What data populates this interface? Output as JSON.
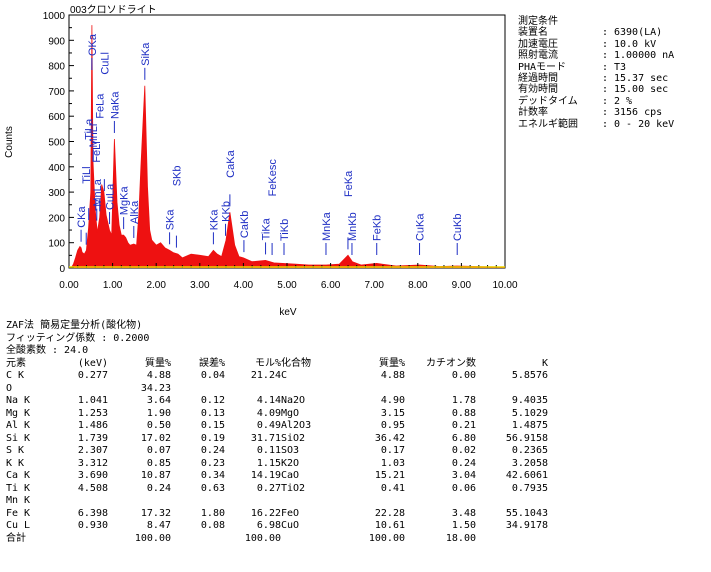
{
  "chart_data": {
    "type": "area",
    "title": "003クロソドライト",
    "xlabel": "keV",
    "ylabel": "Counts",
    "xlim": [
      0,
      10
    ],
    "ylim": [
      0,
      1000
    ],
    "x_ticks": [
      "0.00",
      "1.00",
      "2.00",
      "3.00",
      "4.00",
      "5.00",
      "6.00",
      "7.00",
      "8.00",
      "9.00",
      "10.00"
    ],
    "y_ticks": [
      "0",
      "100",
      "200",
      "300",
      "400",
      "500",
      "600",
      "700",
      "800",
      "900",
      "1000"
    ],
    "fill_color": "#ee1111",
    "line_color": "#e8d800",
    "peak_label_color": "#1f2fc4",
    "spectrum": {
      "x": [
        0.05,
        0.1,
        0.15,
        0.2,
        0.25,
        0.277,
        0.3,
        0.35,
        0.4,
        0.45,
        0.5,
        0.525,
        0.55,
        0.6,
        0.65,
        0.705,
        0.75,
        0.8,
        0.85,
        0.93,
        0.98,
        1.041,
        1.1,
        1.15,
        1.2,
        1.253,
        1.3,
        1.35,
        1.4,
        1.486,
        1.55,
        1.6,
        1.65,
        1.739,
        1.8,
        1.85,
        1.9,
        2.0,
        2.1,
        2.2,
        2.307,
        2.4,
        2.5,
        2.6,
        2.8,
        3.0,
        3.2,
        3.312,
        3.4,
        3.5,
        3.6,
        3.69,
        3.8,
        3.9,
        4.0,
        4.2,
        4.508,
        4.7,
        4.9,
        5.2,
        5.5,
        5.9,
        6.2,
        6.398,
        6.5,
        6.7,
        7.058,
        7.5,
        8.04,
        8.5,
        8.9,
        9.5,
        10.0
      ],
      "y": [
        0,
        15,
        40,
        70,
        85,
        80,
        62,
        55,
        70,
        160,
        300,
        960,
        420,
        230,
        140,
        200,
        330,
        300,
        210,
        150,
        130,
        510,
        260,
        170,
        130,
        130,
        120,
        100,
        90,
        95,
        90,
        210,
        400,
        720,
        320,
        150,
        110,
        90,
        100,
        80,
        70,
        60,
        55,
        40,
        55,
        50,
        45,
        70,
        55,
        45,
        110,
        220,
        90,
        45,
        40,
        25,
        30,
        20,
        18,
        15,
        12,
        12,
        15,
        50,
        25,
        12,
        18,
        8,
        12,
        6,
        8,
        5,
        4
      ]
    },
    "peaks": [
      {
        "label": "CKa",
        "kev": 0.277
      },
      {
        "label": "TiLl",
        "kev": 0.395
      },
      {
        "label": "TiLa",
        "kev": 0.452
      },
      {
        "label": "OKa",
        "kev": 0.525
      },
      {
        "label": "MnLl",
        "kev": 0.556
      },
      {
        "label": "MnLa",
        "kev": 0.637
      },
      {
        "label": "FeLl",
        "kev": 0.615
      },
      {
        "label": "FeLa",
        "kev": 0.705
      },
      {
        "label": "CuLl",
        "kev": 0.811
      },
      {
        "label": "CuLa",
        "kev": 0.93
      },
      {
        "label": "NaKa",
        "kev": 1.041
      },
      {
        "label": "MgKa",
        "kev": 1.253
      },
      {
        "label": "AlKa",
        "kev": 1.486
      },
      {
        "label": "SiKa",
        "kev": 1.739
      },
      {
        "label": "SKa",
        "kev": 2.307
      },
      {
        "label": "SKb",
        "kev": 2.464
      },
      {
        "label": "KKa",
        "kev": 3.312
      },
      {
        "label": "KKb",
        "kev": 3.59
      },
      {
        "label": "CaKa",
        "kev": 3.69
      },
      {
        "label": "CaKb",
        "kev": 4.012
      },
      {
        "label": "TiKa",
        "kev": 4.508
      },
      {
        "label": "TiKb",
        "kev": 4.931
      },
      {
        "label": "FeKesc",
        "kev": 4.658
      },
      {
        "label": "MnKa",
        "kev": 5.894
      },
      {
        "label": "MnKb",
        "kev": 6.49
      },
      {
        "label": "FeKa",
        "kev": 6.398
      },
      {
        "label": "FeKb",
        "kev": 7.058
      },
      {
        "label": "CuKa",
        "kev": 8.04
      },
      {
        "label": "CuKb",
        "kev": 8.904
      }
    ]
  },
  "conditions": {
    "heading": "測定条件",
    "rows": [
      {
        "key": "装置名",
        "value": "6390(LA)"
      },
      {
        "key": "加速電圧",
        "value": "10.0 kV"
      },
      {
        "key": "照射電流",
        "value": "1.00000 nA"
      },
      {
        "key": "PHAモード",
        "value": "T3"
      },
      {
        "key": "経過時間",
        "value": "15.37 sec"
      },
      {
        "key": "有効時間",
        "value": "15.00 sec"
      },
      {
        "key": "デッドタイム",
        "value": "2 %"
      },
      {
        "key": "計数率",
        "value": "3156 cps"
      },
      {
        "key": "エネルギ範囲",
        "value": "0 - 20 keV"
      }
    ]
  },
  "analysis": {
    "line1": "ZAF法 簡易定量分析(酸化物)",
    "line2": "フィッティング係数 : 0.2000",
    "line3": "全酸素数 : 24.0",
    "headers": [
      "元素",
      "(keV)",
      "質量%",
      "誤差%",
      "モル%",
      "化合物",
      "",
      "質量%",
      "カチオン数",
      "K"
    ],
    "rows": [
      [
        "C K",
        "0.277",
        "4.88",
        "0.04",
        "21.24",
        "C",
        "",
        "4.88",
        "0.00",
        "5.8576"
      ],
      [
        "O",
        "",
        "34.23",
        "",
        "",
        "",
        "",
        "",
        "",
        ""
      ],
      [
        "Na K",
        "1.041",
        "3.64",
        "0.12",
        "4.14",
        "Na2O",
        "",
        "4.90",
        "1.78",
        "9.4035"
      ],
      [
        "Mg K",
        "1.253",
        "1.90",
        "0.13",
        "4.09",
        "MgO",
        "",
        "3.15",
        "0.88",
        "5.1029"
      ],
      [
        "Al K",
        "1.486",
        "0.50",
        "0.15",
        "0.49",
        "Al2O3",
        "",
        "0.95",
        "0.21",
        "1.4875"
      ],
      [
        "Si K",
        "1.739",
        "17.02",
        "0.19",
        "31.71",
        "SiO2",
        "",
        "36.42",
        "6.80",
        "56.9158"
      ],
      [
        "S K",
        "2.307",
        "0.07",
        "0.24",
        "0.11",
        "SO3",
        "",
        "0.17",
        "0.02",
        "0.2365"
      ],
      [
        "K K",
        "3.312",
        "0.85",
        "0.23",
        "1.15",
        "K2O",
        "",
        "1.03",
        "0.24",
        "3.2058"
      ],
      [
        "Ca K",
        "3.690",
        "10.87",
        "0.34",
        "14.19",
        "CaO",
        "",
        "15.21",
        "3.04",
        "42.6061"
      ],
      [
        "Ti K",
        "4.508",
        "0.24",
        "0.63",
        "0.27",
        "TiO2",
        "",
        "0.41",
        "0.06",
        "0.7935"
      ],
      [
        "Mn K",
        "",
        "",
        "",
        "",
        "",
        "",
        "",
        "",
        ""
      ],
      [
        "Fe K",
        "6.398",
        "17.32",
        "1.80",
        "16.22",
        "FeO",
        "",
        "22.28",
        "3.48",
        "55.1043"
      ],
      [
        "Cu L",
        "0.930",
        "8.47",
        "0.08",
        "6.98",
        "CuO",
        "",
        "10.61",
        "1.50",
        "34.9178"
      ],
      [
        "合計",
        "",
        "100.00",
        "",
        "100.00",
        "",
        "",
        "100.00",
        "18.00",
        ""
      ]
    ]
  }
}
